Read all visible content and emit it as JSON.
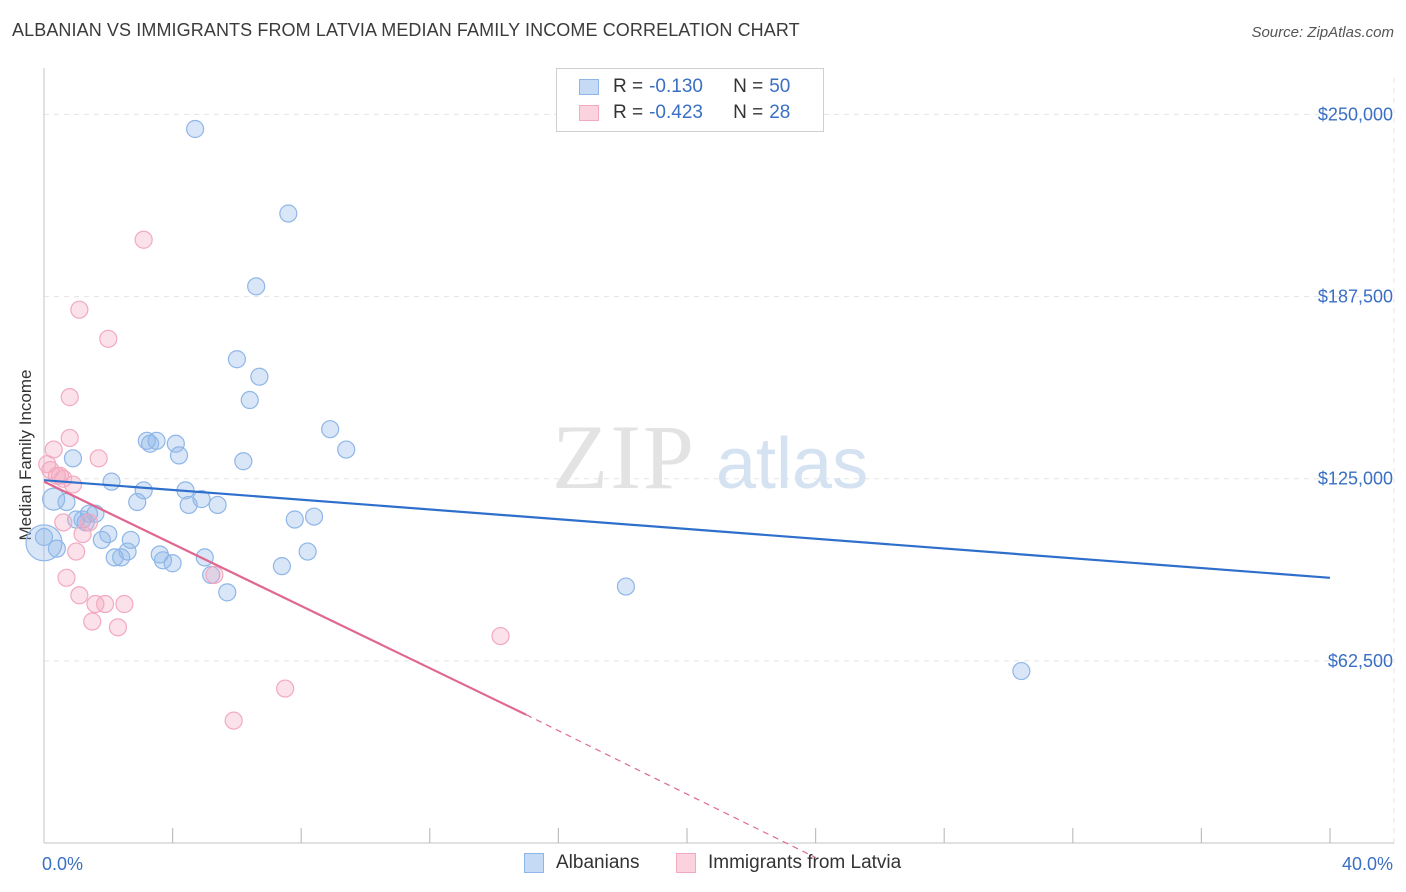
{
  "chart_data": {
    "type": "scatter",
    "title": "ALBANIAN VS IMMIGRANTS FROM LATVIA MEDIAN FAMILY INCOME CORRELATION CHART",
    "source": "Source: ZipAtlas.com",
    "ylabel": "Median Family Income",
    "xlabel": "",
    "xlim": [
      0,
      40
    ],
    "ylim": [
      0,
      262500
    ],
    "y_ticks": [
      62500,
      125000,
      187500,
      250000
    ],
    "y_tick_labels": [
      "$62,500",
      "$125,000",
      "$187,500",
      "$250,000"
    ],
    "x_tick_labels": [
      "0.0%",
      "40.0%"
    ],
    "watermark": "ZIPatlas",
    "legend": [
      {
        "r_label": "R = ",
        "r_value": "-0.130",
        "n_label": "N = ",
        "n_value": "50"
      },
      {
        "r_label": "R = ",
        "r_value": "-0.423",
        "n_label": "N = ",
        "n_value": "28"
      }
    ],
    "series": [
      {
        "name": "Albanians",
        "color": "#8fb6e8",
        "line_color": "#2f6fcc",
        "trend": {
          "x0": 0,
          "y0": 124500,
          "x1": 40,
          "y1": 91000
        },
        "points": [
          [
            0.0,
            103000
          ],
          [
            0.3,
            118000
          ],
          [
            0.4,
            101000
          ],
          [
            0.7,
            117000
          ],
          [
            0.9,
            132000
          ],
          [
            1.0,
            111000
          ],
          [
            1.3,
            110000
          ],
          [
            1.4,
            113000
          ],
          [
            1.6,
            113000
          ],
          [
            1.8,
            104000
          ],
          [
            2.0,
            106000
          ],
          [
            2.1,
            124000
          ],
          [
            2.2,
            98000
          ],
          [
            2.4,
            98000
          ],
          [
            2.6,
            100000
          ],
          [
            2.7,
            104000
          ],
          [
            2.9,
            117000
          ],
          [
            3.1,
            121000
          ],
          [
            3.2,
            138000
          ],
          [
            3.3,
            137000
          ],
          [
            3.5,
            138000
          ],
          [
            3.6,
            99000
          ],
          [
            3.7,
            97000
          ],
          [
            4.0,
            96000
          ],
          [
            4.1,
            137000
          ],
          [
            4.2,
            133000
          ],
          [
            4.4,
            121000
          ],
          [
            4.5,
            116000
          ],
          [
            4.7,
            245000
          ],
          [
            4.9,
            118000
          ],
          [
            5.0,
            98000
          ],
          [
            5.2,
            92000
          ],
          [
            5.4,
            116000
          ],
          [
            5.7,
            86000
          ],
          [
            6.0,
            166000
          ],
          [
            6.2,
            131000
          ],
          [
            6.4,
            152000
          ],
          [
            6.6,
            191000
          ],
          [
            6.7,
            160000
          ],
          [
            7.4,
            95000
          ],
          [
            7.6,
            216000
          ],
          [
            7.8,
            111000
          ],
          [
            8.2,
            100000
          ],
          [
            8.4,
            112000
          ],
          [
            8.9,
            142000
          ],
          [
            9.4,
            135000
          ],
          [
            18.1,
            88000
          ],
          [
            30.4,
            59000
          ],
          [
            0.0,
            105000
          ],
          [
            1.2,
            111000
          ]
        ]
      },
      {
        "name": "Immigrants from Latvia",
        "color": "#f3a9c0",
        "line_color": "#e06890",
        "trend": {
          "x0": 0,
          "y0": 124000,
          "x1": 15,
          "y1": 44000,
          "dash_x1": 24,
          "dash_y1": -5000
        },
        "points": [
          [
            0.1,
            130000
          ],
          [
            0.2,
            128000
          ],
          [
            0.3,
            135000
          ],
          [
            0.4,
            126000
          ],
          [
            0.5,
            126000
          ],
          [
            0.6,
            125000
          ],
          [
            0.6,
            110000
          ],
          [
            0.7,
            91000
          ],
          [
            0.8,
            153000
          ],
          [
            0.8,
            139000
          ],
          [
            0.9,
            123000
          ],
          [
            1.0,
            100000
          ],
          [
            1.1,
            85000
          ],
          [
            1.1,
            183000
          ],
          [
            1.2,
            106000
          ],
          [
            1.4,
            110000
          ],
          [
            1.5,
            76000
          ],
          [
            1.6,
            82000
          ],
          [
            1.7,
            132000
          ],
          [
            1.9,
            82000
          ],
          [
            2.0,
            173000
          ],
          [
            2.3,
            74000
          ],
          [
            2.5,
            82000
          ],
          [
            3.1,
            207000
          ],
          [
            5.3,
            92000
          ],
          [
            5.9,
            42000
          ],
          [
            7.5,
            53000
          ],
          [
            14.2,
            71000
          ]
        ]
      }
    ]
  }
}
